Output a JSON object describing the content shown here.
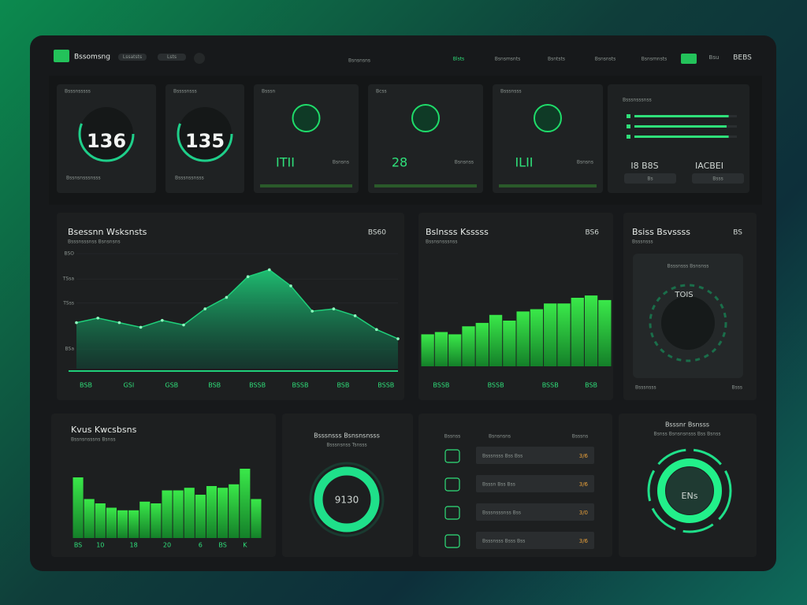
{
  "header": {
    "brand": "Bssomsng",
    "pills": [
      "Lssatsts",
      "Lsts"
    ],
    "search": "Bsnsnsns",
    "nav": [
      "Blsts",
      "Bsnsmsnts",
      "Bsntsts",
      "Bsnsnsts",
      "Bsnsmnsts"
    ],
    "user": "BEBS",
    "user_small": "Bsu"
  },
  "kpis": [
    {
      "title": "Bsssnsssss",
      "value": "136",
      "caption": "Bssnsnsssnsss"
    },
    {
      "title": "Bssssnsss",
      "value": "135",
      "caption": "Bsssnssnsss"
    },
    {
      "title": "Bsssn",
      "value": "ITII",
      "caption": "Bsnsns"
    },
    {
      "title": "Bcss",
      "value": "28",
      "caption": "Bsnsnss"
    },
    {
      "title": "Bsssnsss",
      "value": "ILII",
      "caption": "Bsnsns"
    }
  ],
  "status_card": {
    "title": "Bsssnsssnss",
    "progress": [
      92,
      90,
      92
    ],
    "labels": [
      "I8 B8S",
      "IACBEI"
    ],
    "buttons": [
      "Bs",
      "Bsss"
    ]
  },
  "area_chart": {
    "type": "area",
    "title": "Bsessnn Wsksnsts",
    "subtitle": "Bsssnsssnss Bsnsnsns",
    "badge": "BS60",
    "categories": [
      "BSB",
      null,
      "GSI",
      null,
      "GSB",
      null,
      "BSB",
      null,
      "BSSB",
      null,
      "BSSB",
      null,
      "BSB",
      null,
      "BSSB",
      null
    ],
    "values": [
      40,
      44,
      40,
      36,
      42,
      38,
      52,
      62,
      80,
      86,
      72,
      50,
      52,
      46,
      34,
      26
    ],
    "ylim": [
      0,
      100
    ],
    "yticks": [
      {
        "value": 17,
        "label": "BSa"
      },
      {
        "value": 57,
        "label": "TSss"
      },
      {
        "value": 78,
        "label": "TSsa"
      },
      {
        "value": 100,
        "label": "BSO"
      }
    ],
    "color": "#1fcf7a",
    "grid": true
  },
  "bar_chart": {
    "type": "bar",
    "title": "Bslnsss Ksssss",
    "subtitle": "Bssnsnsssnss",
    "badge": "BS6",
    "categories": [
      null,
      "BSSB",
      null,
      null,
      null,
      "BSSB",
      null,
      null,
      null,
      "BSSB",
      null,
      null,
      "BSB",
      null
    ],
    "values": [
      28,
      30,
      28,
      35,
      38,
      45,
      40,
      48,
      50,
      55,
      55,
      60,
      62,
      58
    ],
    "ylim": [
      0,
      100
    ],
    "color": "#22e04a"
  },
  "dial_card": {
    "title": "Bsiss Bsvssss",
    "badge": "BS",
    "subtitle": "Bsssnsss",
    "inner": "Bsssnsss Bsnsnss",
    "value": "TOIS",
    "footer": [
      "Bsssnsss",
      "Bsss"
    ]
  },
  "bottom_bar_chart": {
    "type": "bar",
    "title": "Kvus Kwcsbsns",
    "subtitle": "Bssnsnsssns Bsnss",
    "categories": [
      "BS",
      null,
      "10",
      null,
      null,
      "18",
      null,
      null,
      "20",
      null,
      null,
      "6",
      null,
      "BS",
      null,
      "K",
      null
    ],
    "values": [
      70,
      45,
      40,
      35,
      32,
      32,
      42,
      40,
      55,
      55,
      58,
      50,
      60,
      58,
      62,
      80,
      45
    ],
    "ylim": [
      0,
      100
    ],
    "color": "#27d83c"
  },
  "donut_card": {
    "title": "Bsssnsss Bsnsnsnsss",
    "subtitle": "Bsssnsnss Tsnsss",
    "value": "9130"
  },
  "list_card": {
    "header": [
      "Bssnss",
      "Bsnsnsns",
      "Bsssns"
    ],
    "rows": [
      {
        "label": "Bsssnsss Bss Bss",
        "value": "3/6"
      },
      {
        "label": "Bsssn Bss Bss",
        "value": "3/6"
      },
      {
        "label": "Bsssnsssnss Bss",
        "value": "3/0"
      },
      {
        "label": "Bsssnsss Bsss Bss",
        "value": "3/6"
      }
    ]
  },
  "ring_card": {
    "title": "Bsssnr Bsnsss",
    "subtitle": "Bsnss Bsnsnsnsss Bss Bsnss",
    "value": "ENs"
  }
}
